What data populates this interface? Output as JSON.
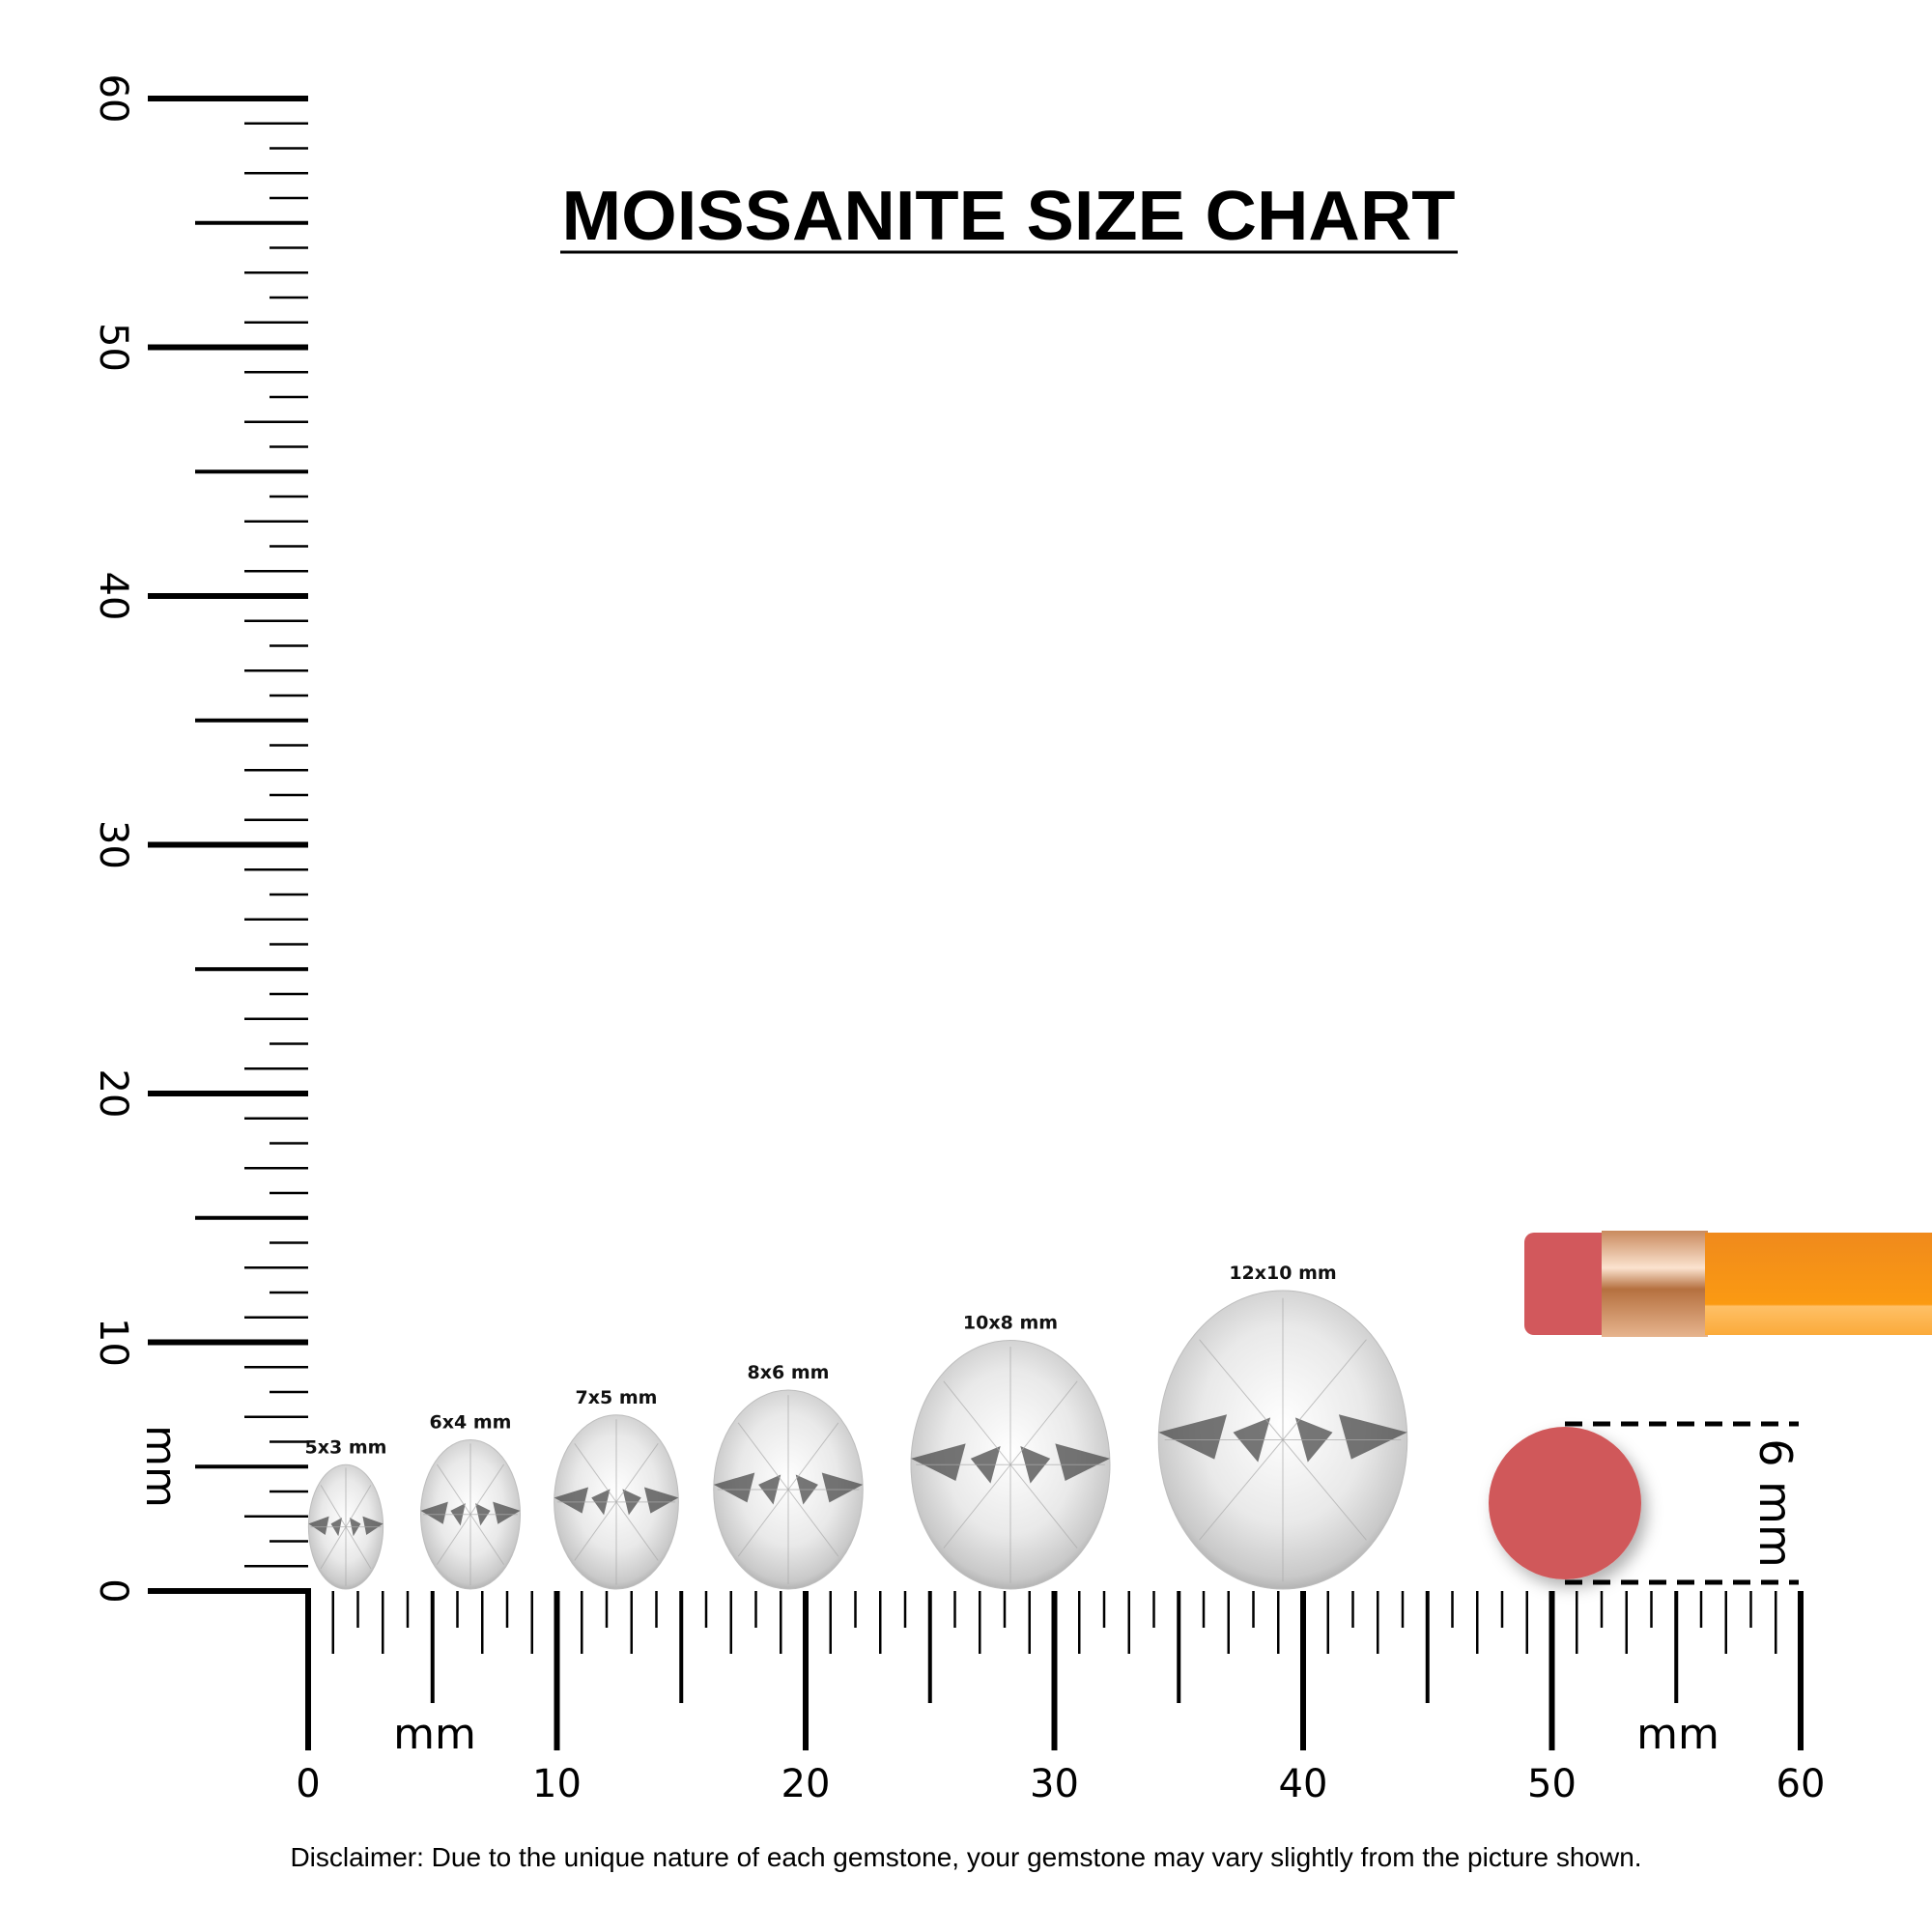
{
  "title": "MOISSANITE SIZE CHART",
  "disclaimer": "Disclaimer: Due to the unique nature of each gemstone, your gemstone may vary slightly from the picture shown.",
  "rulers": {
    "unit_label": "mm",
    "vertical": {
      "min": 0,
      "max": 60,
      "label_step": 10,
      "labels": [
        "0",
        "10",
        "20",
        "30",
        "40",
        "50",
        "60"
      ]
    },
    "horizontal": {
      "min": 0,
      "max": 60,
      "label_step": 10,
      "labels": [
        "0",
        "10",
        "20",
        "30",
        "40",
        "50",
        "60"
      ]
    }
  },
  "reference": {
    "label": "6 mm",
    "diameter_mm": 6,
    "object": "pencil eraser",
    "colors": {
      "eraser": "#d0585a",
      "pencil_body": "#f7921e",
      "ferrule": "#d9a07a"
    }
  },
  "chart_data": {
    "type": "size-comparison",
    "title": "MOISSANITE SIZE CHART",
    "shape": "oval",
    "unit": "mm",
    "items": [
      {
        "label": "5x3 mm",
        "length": 5,
        "width": 3
      },
      {
        "label": "6x4 mm",
        "length": 6,
        "width": 4
      },
      {
        "label": "7x5 mm",
        "length": 7,
        "width": 5
      },
      {
        "label": "8x6 mm",
        "length": 8,
        "width": 6
      },
      {
        "label": "10x8 mm",
        "length": 10,
        "width": 8
      },
      {
        "label": "12x10 mm",
        "length": 12,
        "width": 10
      }
    ]
  }
}
